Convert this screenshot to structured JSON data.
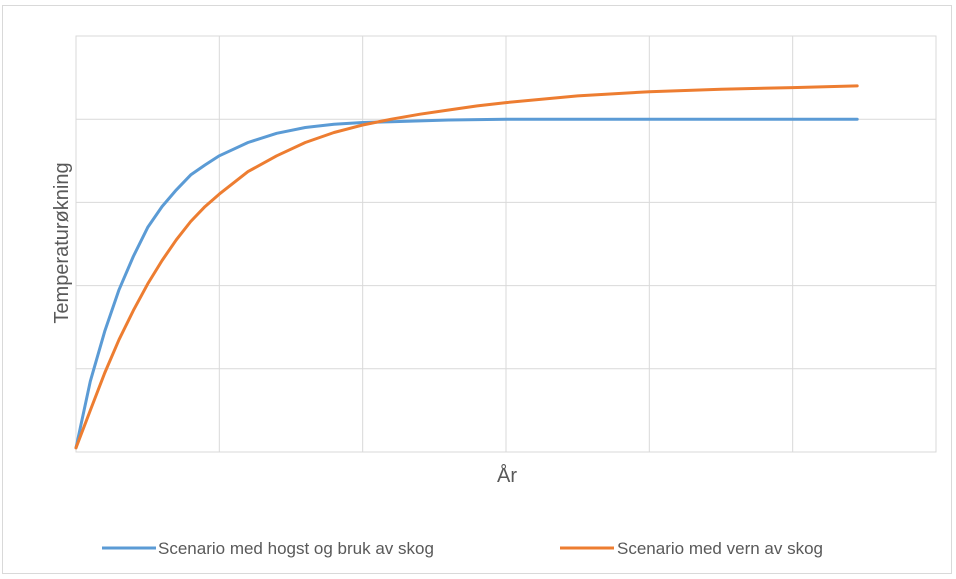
{
  "chart_data": {
    "type": "line",
    "title": "",
    "xlabel": "År",
    "ylabel": "Temperaturøkning",
    "xlim": [
      0,
      6
    ],
    "ylim": [
      0,
      5
    ],
    "grid": true,
    "tick_labels_shown": false,
    "legend_position": "bottom",
    "series": [
      {
        "name": "Scenario med hogst og bruk av skog",
        "color": "#5b9bd5",
        "x": [
          0,
          0.1,
          0.2,
          0.3,
          0.4,
          0.5,
          0.6,
          0.7,
          0.8,
          0.9,
          1.0,
          1.2,
          1.4,
          1.6,
          1.8,
          2.0,
          2.2,
          2.4,
          2.6,
          2.8,
          3.0,
          3.5,
          4.0,
          4.5,
          5.0,
          5.45
        ],
        "y": [
          0.05,
          0.85,
          1.45,
          1.95,
          2.35,
          2.7,
          2.95,
          3.15,
          3.33,
          3.45,
          3.56,
          3.72,
          3.83,
          3.9,
          3.94,
          3.96,
          3.97,
          3.98,
          3.99,
          3.995,
          4.0,
          4.0,
          4.0,
          4.0,
          4.0,
          4.0
        ]
      },
      {
        "name": "Scenario med vern av skog",
        "color": "#ed7d31",
        "x": [
          0,
          0.1,
          0.2,
          0.3,
          0.4,
          0.5,
          0.6,
          0.7,
          0.8,
          0.9,
          1.0,
          1.2,
          1.4,
          1.6,
          1.8,
          2.0,
          2.2,
          2.4,
          2.6,
          2.8,
          3.0,
          3.5,
          4.0,
          4.5,
          5.0,
          5.45
        ],
        "y": [
          0.05,
          0.5,
          0.95,
          1.35,
          1.7,
          2.02,
          2.3,
          2.55,
          2.77,
          2.95,
          3.1,
          3.37,
          3.56,
          3.72,
          3.84,
          3.93,
          4.0,
          4.06,
          4.11,
          4.16,
          4.2,
          4.28,
          4.33,
          4.36,
          4.38,
          4.4
        ]
      }
    ]
  }
}
